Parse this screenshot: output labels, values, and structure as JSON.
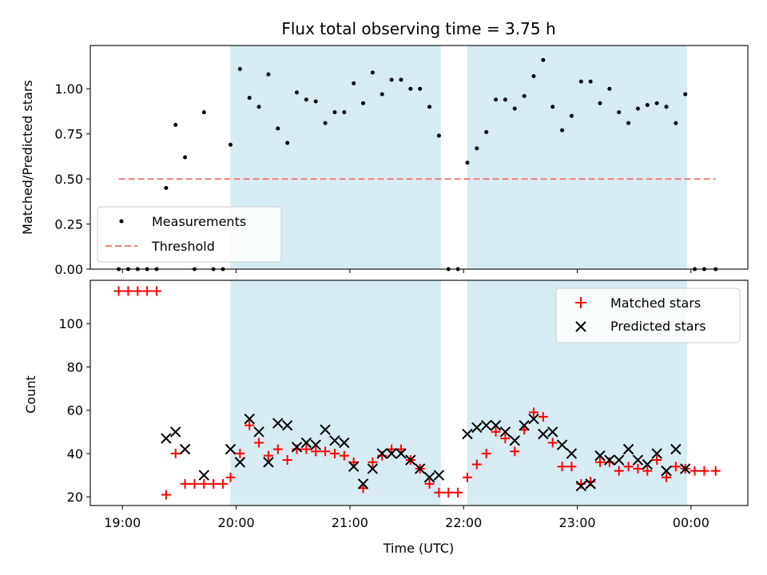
{
  "chart_data": [
    {
      "type": "scatter",
      "title": "Flux total observing time = 3.75 h",
      "ylabel": "Matched/Predicted stars",
      "xlabel": "",
      "xlim": [
        "18:43",
        "00:30"
      ],
      "ylim": [
        0,
        1.24
      ],
      "grid": false,
      "legend_position": "bottom-left",
      "yticks": [
        "0.00",
        "0.25",
        "0.50",
        "0.75",
        "1.00"
      ],
      "shaded_intervals": [
        [
          "19:57",
          "21:48"
        ],
        [
          "22:02",
          "23:58"
        ]
      ],
      "series": [
        {
          "name": "Measurements",
          "style": "dot",
          "color": "#000000",
          "points": [
            [
              "18:58",
              0
            ],
            [
              "19:03",
              0
            ],
            [
              "19:08",
              0
            ],
            [
              "19:13",
              0
            ],
            [
              "19:18",
              0
            ],
            [
              "19:23",
              0.45
            ],
            [
              "19:28",
              0.8
            ],
            [
              "19:33",
              0.62
            ],
            [
              "19:38",
              0
            ],
            [
              "19:43",
              0.87
            ],
            [
              "19:48",
              0
            ],
            [
              "19:53",
              0
            ],
            [
              "19:57",
              0.69
            ],
            [
              "20:02",
              1.11
            ],
            [
              "20:07",
              0.95
            ],
            [
              "20:12",
              0.9
            ],
            [
              "20:17",
              1.08
            ],
            [
              "20:22",
              0.78
            ],
            [
              "20:27",
              0.7
            ],
            [
              "20:32",
              0.98
            ],
            [
              "20:37",
              0.94
            ],
            [
              "20:42",
              0.93
            ],
            [
              "20:47",
              0.81
            ],
            [
              "20:52",
              0.87
            ],
            [
              "20:57",
              0.87
            ],
            [
              "21:02",
              1.03
            ],
            [
              "21:07",
              0.92
            ],
            [
              "21:12",
              1.09
            ],
            [
              "21:17",
              0.97
            ],
            [
              "21:22",
              1.05
            ],
            [
              "21:27",
              1.05
            ],
            [
              "21:32",
              1.0
            ],
            [
              "21:37",
              1.0
            ],
            [
              "21:42",
              0.9
            ],
            [
              "21:47",
              0.74
            ],
            [
              "21:52",
              0
            ],
            [
              "21:57",
              0
            ],
            [
              "22:02",
              0.59
            ],
            [
              "22:07",
              0.67
            ],
            [
              "22:12",
              0.76
            ],
            [
              "22:17",
              0.94
            ],
            [
              "22:22",
              0.94
            ],
            [
              "22:27",
              0.89
            ],
            [
              "22:32",
              0.96
            ],
            [
              "22:37",
              1.07
            ],
            [
              "22:42",
              1.16
            ],
            [
              "22:47",
              0.9
            ],
            [
              "22:52",
              0.77
            ],
            [
              "22:57",
              0.85
            ],
            [
              "23:02",
              1.04
            ],
            [
              "23:07",
              1.04
            ],
            [
              "23:12",
              0.92
            ],
            [
              "23:17",
              1.0
            ],
            [
              "23:22",
              0.87
            ],
            [
              "23:27",
              0.81
            ],
            [
              "23:32",
              0.89
            ],
            [
              "23:37",
              0.91
            ],
            [
              "23:42",
              0.92
            ],
            [
              "23:47",
              0.9
            ],
            [
              "23:52",
              0.81
            ],
            [
              "23:57",
              0.97
            ],
            [
              "00:02",
              0
            ],
            [
              "00:07",
              0
            ],
            [
              "00:13",
              0
            ]
          ]
        },
        {
          "name": "Threshold",
          "style": "dashed-line",
          "color": "#f08080",
          "points": [
            [
              "18:58",
              0.5
            ],
            [
              "00:13",
              0.5
            ]
          ]
        }
      ]
    },
    {
      "type": "scatter",
      "title": "",
      "ylabel": "Count",
      "xlabel": "Time (UTC)",
      "xlim": [
        "18:43",
        "00:30"
      ],
      "ylim": [
        16,
        120
      ],
      "grid": false,
      "legend_position": "top-right",
      "xticks": [
        "19:00",
        "20:00",
        "21:00",
        "22:00",
        "23:00",
        "00:00"
      ],
      "yticks": [
        "20",
        "40",
        "60",
        "80",
        "100"
      ],
      "shaded_intervals": [
        [
          "19:57",
          "21:48"
        ],
        [
          "22:02",
          "23:58"
        ]
      ],
      "series": [
        {
          "name": "Matched stars",
          "style": "plus",
          "color": "#ff0000",
          "points": [
            [
              "18:58",
              115
            ],
            [
              "19:03",
              115
            ],
            [
              "19:08",
              115
            ],
            [
              "19:13",
              115
            ],
            [
              "19:18",
              115
            ],
            [
              "19:23",
              21
            ],
            [
              "19:28",
              40
            ],
            [
              "19:33",
              26
            ],
            [
              "19:38",
              26
            ],
            [
              "19:43",
              26
            ],
            [
              "19:48",
              26
            ],
            [
              "19:53",
              26
            ],
            [
              "19:57",
              29
            ],
            [
              "20:02",
              40
            ],
            [
              "20:07",
              53
            ],
            [
              "20:12",
              45
            ],
            [
              "20:17",
              39
            ],
            [
              "20:22",
              42
            ],
            [
              "20:27",
              37
            ],
            [
              "20:32",
              42
            ],
            [
              "20:37",
              42
            ],
            [
              "20:42",
              41
            ],
            [
              "20:47",
              41
            ],
            [
              "20:52",
              40
            ],
            [
              "20:57",
              39
            ],
            [
              "21:02",
              36
            ],
            [
              "21:07",
              24
            ],
            [
              "21:12",
              36
            ],
            [
              "21:17",
              39
            ],
            [
              "21:22",
              42
            ],
            [
              "21:27",
              42
            ],
            [
              "21:32",
              37
            ],
            [
              "21:37",
              33
            ],
            [
              "21:42",
              26
            ],
            [
              "21:47",
              22
            ],
            [
              "21:52",
              22
            ],
            [
              "21:57",
              22
            ],
            [
              "22:02",
              29
            ],
            [
              "22:07",
              35
            ],
            [
              "22:12",
              40
            ],
            [
              "22:17",
              50
            ],
            [
              "22:22",
              47
            ],
            [
              "22:27",
              41
            ],
            [
              "22:32",
              51
            ],
            [
              "22:37",
              59
            ],
            [
              "22:42",
              57
            ],
            [
              "22:47",
              45
            ],
            [
              "22:52",
              34
            ],
            [
              "22:57",
              34
            ],
            [
              "23:02",
              26
            ],
            [
              "23:07",
              27
            ],
            [
              "23:12",
              36
            ],
            [
              "23:17",
              36
            ],
            [
              "23:22",
              32
            ],
            [
              "23:27",
              34
            ],
            [
              "23:32",
              33
            ],
            [
              "23:37",
              32
            ],
            [
              "23:42",
              37
            ],
            [
              "23:47",
              29
            ],
            [
              "23:52",
              34
            ],
            [
              "23:57",
              33
            ],
            [
              "00:02",
              32
            ],
            [
              "00:07",
              32
            ],
            [
              "00:13",
              32
            ]
          ]
        },
        {
          "name": "Predicted stars",
          "style": "x",
          "color": "#000000",
          "points": [
            [
              "19:23",
              47
            ],
            [
              "19:28",
              50
            ],
            [
              "19:33",
              42
            ],
            [
              "19:43",
              30
            ],
            [
              "19:57",
              42
            ],
            [
              "20:02",
              36
            ],
            [
              "20:07",
              56
            ],
            [
              "20:12",
              50
            ],
            [
              "20:17",
              36
            ],
            [
              "20:22",
              54
            ],
            [
              "20:27",
              53
            ],
            [
              "20:32",
              43
            ],
            [
              "20:37",
              45
            ],
            [
              "20:42",
              44
            ],
            [
              "20:47",
              51
            ],
            [
              "20:52",
              46
            ],
            [
              "20:57",
              45
            ],
            [
              "21:02",
              34
            ],
            [
              "21:07",
              26
            ],
            [
              "21:12",
              33
            ],
            [
              "21:17",
              40
            ],
            [
              "21:22",
              40
            ],
            [
              "21:27",
              40
            ],
            [
              "21:32",
              37
            ],
            [
              "21:37",
              33
            ],
            [
              "21:42",
              29
            ],
            [
              "21:47",
              30
            ],
            [
              "22:02",
              49
            ],
            [
              "22:07",
              52
            ],
            [
              "22:12",
              53
            ],
            [
              "22:17",
              53
            ],
            [
              "22:22",
              50
            ],
            [
              "22:27",
              46
            ],
            [
              "22:32",
              53
            ],
            [
              "22:37",
              56
            ],
            [
              "22:42",
              49
            ],
            [
              "22:47",
              50
            ],
            [
              "22:52",
              44
            ],
            [
              "22:57",
              40
            ],
            [
              "23:02",
              25
            ],
            [
              "23:07",
              26
            ],
            [
              "23:12",
              39
            ],
            [
              "23:17",
              37
            ],
            [
              "23:22",
              37
            ],
            [
              "23:27",
              42
            ],
            [
              "23:32",
              37
            ],
            [
              "23:37",
              35
            ],
            [
              "23:42",
              40
            ],
            [
              "23:47",
              32
            ],
            [
              "23:52",
              42
            ],
            [
              "23:57",
              33
            ]
          ]
        }
      ]
    }
  ],
  "colors": {
    "shade": "#add8e6",
    "matched": "#ff0000",
    "predicted": "#000000",
    "threshold": "#f08080",
    "measurements": "#000000"
  }
}
